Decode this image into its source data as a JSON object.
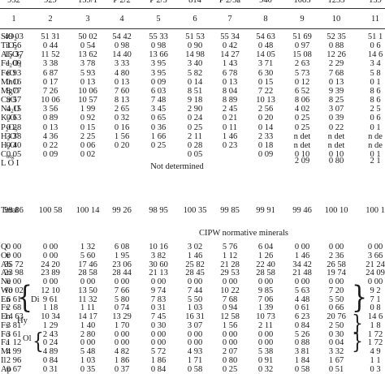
{
  "table": {
    "sample_ids": [
      "932",
      "929",
      "159/1",
      "P 2/2",
      "P 2/5",
      "814",
      "P 2/5a",
      "940",
      "1085",
      "1253",
      "159"
    ],
    "column_numbers": [
      "1",
      "2",
      "3",
      "4",
      "5",
      "6",
      "7",
      "8",
      "9",
      "10",
      "11"
    ],
    "oxides": [
      {
        "label": "SiO2",
        "values": [
          "49 03",
          "51 31",
          "50 02",
          "54 42",
          "55 33",
          "51 53",
          "55 34",
          "54 63",
          "51 69",
          "52 35",
          "51 1"
        ]
      },
      {
        "label": "TiO2",
        "values": [
          "1 56",
          "0 44",
          "0 54",
          "0 98",
          "0 98",
          "0 90",
          "0 42",
          "0 48",
          "0 97",
          "0 88",
          "0 6"
        ]
      },
      {
        "label": "Al2O3",
        "values": [
          "15 37",
          "11 52",
          "13 62",
          "14 40",
          "13 66",
          "14 98",
          "14 27",
          "14 05",
          "15 08",
          "12 26",
          "14 6"
        ]
      },
      {
        "label": "Fe2O3",
        "values": [
          "1 09",
          "3 38",
          "3 78",
          "3 33",
          "3 95",
          "3 40",
          "1 43",
          "3 71",
          "2 63",
          "2 29",
          "3 4"
        ]
      },
      {
        "label": "FeO",
        "values": [
          "6 93",
          "6 87",
          "5 93",
          "4 80",
          "3 95",
          "5 82",
          "6 78",
          "6 30",
          "5 73",
          "7 68",
          "5 8"
        ]
      },
      {
        "label": "MnO",
        "values": [
          "0 16",
          "0 17",
          "0 13",
          "0 13",
          "0 09",
          "0 14",
          "0 13",
          "0 15",
          "0 12",
          "0 13",
          "0 1"
        ]
      },
      {
        "label": "MgO",
        "values": [
          "8 77",
          "7 26",
          "10 06",
          "7 60",
          "6 03",
          "8 51",
          "8 04",
          "7 22",
          "6 52",
          "9 39",
          "8 6"
        ]
      },
      {
        "label": "CaO",
        "values": [
          "9 57",
          "10 06",
          "10 57",
          "8 13",
          "7 48",
          "9 18",
          "8 89",
          "10 13",
          "8 06",
          "8 25",
          "8 6"
        ]
      },
      {
        "label": "Na2O",
        "values": [
          "4 15",
          "3 56",
          "1 99",
          "2 65",
          "3 45",
          "2 90",
          "2 45",
          "2 56",
          "4 02",
          "3 07",
          "2 5"
        ]
      },
      {
        "label": "K2O",
        "values": [
          "0 63",
          "0 89",
          "0 92",
          "0 32",
          "0 65",
          "0 24",
          "0 21",
          "0 20",
          "0 25",
          "0 39",
          "0 6"
        ]
      },
      {
        "label": "P2O5",
        "values": [
          "0 28",
          "0 13",
          "0 15",
          "0 16",
          "0 36",
          "0 25",
          "0 11",
          "0 14",
          "0 25",
          "0 22",
          "0 1"
        ]
      },
      {
        "label": "H2O+",
        "values": [
          "3 38",
          "4 36",
          "2 25",
          "1 56",
          "1 66",
          "2 11",
          "1 46",
          "2 33",
          "n det",
          "n det",
          "n de"
        ]
      },
      {
        "label": "H2O",
        "values": [
          "0 40",
          "0 22",
          "0 06",
          "0 20",
          "0 25",
          "0 28",
          "0 23",
          "0 18",
          "n det",
          "n det",
          "n de"
        ]
      },
      {
        "label": "Corg",
        "values": [
          "0 05",
          "0 09",
          "0 02",
          "",
          "",
          "0 05",
          "",
          "0 09",
          "0 10",
          "0 10",
          "0 1"
        ]
      }
    ],
    "loi": {
      "label": "L O I",
      "note": "Not determined",
      "values": [
        "2 09",
        "0 80",
        "2 1"
      ]
    },
    "total": {
      "label": "Total",
      "values": [
        "99 86",
        "100 58",
        "100 14",
        "99 26",
        "98 95",
        "100 35",
        "99 85",
        "99 91",
        "99 46",
        "100 10",
        "100 1"
      ]
    },
    "cipw_heading": "CIPW normative minerals",
    "minerals": [
      {
        "label": "Q",
        "values": [
          "0 00",
          "0 00",
          "1 32",
          "6 08",
          "10 16",
          "3 02",
          "5 76",
          "6 04",
          "0 00",
          "0 00",
          "0 00"
        ]
      },
      {
        "label": "Or",
        "values": [
          "0 00",
          "0 00",
          "5 60",
          "1 95",
          "3 82",
          "1 46",
          "1 12",
          "1 26",
          "1 46",
          "2 36",
          "3 66"
        ]
      },
      {
        "label": "Ab",
        "values": [
          "35 72",
          "24 20",
          "17 46",
          "23 06",
          "30 60",
          "25 82",
          "21 28",
          "22 40",
          "34 42",
          "26 58",
          "21 24"
        ]
      },
      {
        "label": "An",
        "values": [
          "23 98",
          "23 89",
          "28 58",
          "28 44",
          "21 13",
          "28 45",
          "29 53",
          "28 58",
          "21 48",
          "19 74",
          "24 09"
        ]
      },
      {
        "label": "Ne",
        "values": [
          "0 00",
          "0 00",
          "0 00",
          "0 00",
          "0 00",
          "0 00",
          "0 00",
          "0 00",
          "0 00",
          "0 00",
          "0 00"
        ]
      },
      {
        "label": "Wo",
        "values": [
          "10 02",
          "12 10",
          "13 50",
          "7 66",
          "9 74",
          "7 44",
          "10 22",
          "9 85",
          "5 63",
          "7 20",
          "9 2"
        ]
      },
      {
        "label": "En",
        "values": [
          "6 61",
          "9 61",
          "11 32",
          "5 80",
          "7 83",
          "5 50",
          "7 68",
          "7 06",
          "4 48",
          "5 50",
          "7 1"
        ]
      },
      {
        "label": "Fs",
        "values": [
          "2 68",
          "1 18",
          "1 11",
          "0 74",
          "0 31",
          "1 03",
          "0 94",
          "1 39",
          "0 61",
          "0 66",
          "0 8"
        ]
      },
      {
        "label": "En",
        "values": [
          "14 63",
          "10 34",
          "14 17",
          "13 29",
          "7 45",
          "16 31",
          "12 58",
          "10 73",
          "6 23",
          "20 76",
          "14 6"
        ]
      },
      {
        "label": "Fs",
        "values": [
          "3 81",
          "1 29",
          "1 40",
          "1 70",
          "0 30",
          "3 07",
          "1 56",
          "2 11",
          "0 84",
          "2 50",
          "1 8"
        ]
      },
      {
        "label": "Fo",
        "values": [
          "3 61",
          "2 43",
          "2 80",
          "0 00",
          "0 00",
          "0 00",
          "0 00",
          "0 00",
          "5 26",
          "0 30",
          "1 72"
        ]
      },
      {
        "label": "Fa",
        "values": [
          "1 12",
          "0 24",
          "0 00",
          "0 00",
          "0 00",
          "0 00",
          "0 00",
          "0 00",
          "0 88",
          "0 04",
          "1 72"
        ]
      },
      {
        "label": "Mt",
        "values": [
          "4 99",
          "4 89",
          "5 48",
          "4 82",
          "5 72",
          "4 93",
          "2 07",
          "5 38",
          "3 81",
          "3 32",
          "4 9"
        ]
      },
      {
        "label": "Il",
        "values": [
          "2 96",
          "0 84",
          "1 03",
          "1 86",
          "1 86",
          "1 71",
          "0 80",
          "0 91",
          "1 84",
          "1 67",
          "1 1"
        ]
      },
      {
        "label": "Ap",
        "values": [
          "0 67",
          "0 31",
          "0 35",
          "0 37",
          "0 84",
          "0 58",
          "0 25",
          "0 32",
          "0 58",
          "0 51",
          "0 3"
        ]
      }
    ],
    "groups": [
      "Di",
      "Hy",
      "Ol"
    ]
  }
}
